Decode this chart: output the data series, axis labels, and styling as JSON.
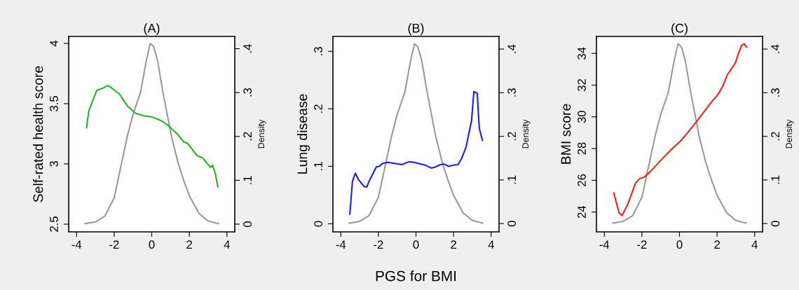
{
  "chart_data": [
    {
      "type": "line",
      "title": "(A)",
      "ylabel": "Self-rated health score",
      "y2label": "Density",
      "xlim": [
        -4.42,
        4.42
      ],
      "xticks": [
        -4,
        -2,
        0,
        2,
        4
      ],
      "ylim": [
        2.436,
        4.058
      ],
      "yticks": [
        2.5,
        3,
        3.5,
        4
      ],
      "y2lim": [
        -0.0176,
        0.428
      ],
      "y2ticks": [
        0,
        {
          "value": 0.1,
          "label": ".1"
        },
        {
          "value": 0.2,
          "label": ".2"
        },
        {
          "value": 0.3,
          "label": ".3"
        },
        {
          "value": 0.4,
          "label": ".4"
        }
      ],
      "series": [
        {
          "color": "#22b422",
          "x": [
            -3.47,
            -3.35,
            -2.93,
            -2.58,
            -2.36,
            -2.22,
            -1.72,
            -1.29,
            -0.86,
            -0.43,
            0,
            0.49,
            0.86,
            1.35,
            1.72,
            1.91,
            2.4,
            2.71,
            3.02,
            3.14,
            3.24,
            3.38,
            3.52
          ],
          "values": [
            3.3,
            3.44,
            3.61,
            3.63,
            3.65,
            3.64,
            3.58,
            3.48,
            3.42,
            3.4,
            3.39,
            3.36,
            3.32,
            3.25,
            3.18,
            3.17,
            3.07,
            3.05,
            2.99,
            2.97,
            2.99,
            2.92,
            2.81
          ]
        },
        {
          "color": "#999999",
          "axis": "y2",
          "x": [
            -3.55,
            -3,
            -2.5,
            -2,
            -1.8,
            -1.3,
            -1,
            -0.6,
            -0.3,
            -0.08,
            0.1,
            0.3,
            0.6,
            1.05,
            1.4,
            1.7,
            2,
            2.5,
            3,
            3.55
          ],
          "values": [
            0.001,
            0.005,
            0.018,
            0.06,
            0.1,
            0.2,
            0.25,
            0.3,
            0.37,
            0.412,
            0.405,
            0.375,
            0.3,
            0.2,
            0.14,
            0.1,
            0.065,
            0.025,
            0.007,
            0.001
          ]
        }
      ]
    },
    {
      "type": "line",
      "title": "(B)",
      "ylabel": "Lung disease",
      "y2label": "Density",
      "xlabel": "PGS for BMI",
      "xlim": [
        -4.42,
        4.42
      ],
      "xticks": [
        -4,
        -2,
        0,
        2,
        4
      ],
      "ylim": [
        -0.014,
        0.326
      ],
      "yticks": [
        0,
        {
          "value": 0.1,
          "label": ".1"
        },
        {
          "value": 0.2,
          "label": ".2"
        },
        {
          "value": 0.3,
          "label": ".3"
        }
      ],
      "y2lim": [
        -0.019,
        0.429
      ],
      "y2ticks": [
        0,
        {
          "value": 0.1,
          "label": ".1"
        },
        {
          "value": 0.2,
          "label": ".2"
        },
        {
          "value": 0.3,
          "label": ".3"
        },
        {
          "value": 0.4,
          "label": ".4"
        }
      ],
      "series": [
        {
          "color": "#1a1aff",
          "x": [
            -3.52,
            -3.38,
            -3.23,
            -3.06,
            -2.77,
            -2.62,
            -2.48,
            -2.11,
            -1.96,
            -1.78,
            -1.49,
            -0.75,
            -0.37,
            -0.12,
            0.5,
            0.81,
            0.97,
            1.3,
            1.49,
            1.74,
            1.99,
            2.24,
            2.42,
            2.67,
            2.96,
            3.08,
            3.26,
            3.37,
            3.54
          ],
          "values": [
            0.017,
            0.074,
            0.088,
            0.077,
            0.065,
            0.064,
            0.075,
            0.099,
            0.1,
            0.105,
            0.107,
            0.103,
            0.108,
            0.107,
            0.102,
            0.097,
            0.098,
            0.103,
            0.104,
            0.1,
            0.102,
            0.103,
            0.113,
            0.134,
            0.18,
            0.23,
            0.227,
            0.166,
            0.145
          ]
        },
        {
          "color": "#999999",
          "axis": "y2",
          "x": [
            -3.55,
            -3,
            -2.5,
            -2,
            -1.8,
            -1.3,
            -1,
            -0.6,
            -0.3,
            -0.08,
            0.1,
            0.3,
            0.6,
            1.05,
            1.4,
            1.7,
            2,
            2.5,
            3,
            3.55
          ],
          "values": [
            0.001,
            0.005,
            0.018,
            0.06,
            0.1,
            0.2,
            0.25,
            0.3,
            0.37,
            0.412,
            0.405,
            0.375,
            0.3,
            0.2,
            0.14,
            0.1,
            0.065,
            0.025,
            0.007,
            0.001
          ]
        }
      ]
    },
    {
      "type": "line",
      "title": "(C)",
      "ylabel": "BMI score",
      "y2label": "Density",
      "xlim": [
        -4.42,
        4.42
      ],
      "xticks": [
        -4,
        -2,
        0,
        2,
        4
      ],
      "ylim": [
        22.75,
        35.07
      ],
      "yticks": [
        24,
        26,
        28,
        30,
        32,
        34
      ],
      "y2lim": [
        -0.019,
        0.429
      ],
      "y2ticks": [
        0,
        {
          "value": 0.1,
          "label": ".1"
        },
        {
          "value": 0.2,
          "label": ".2"
        },
        {
          "value": 0.3,
          "label": ".3"
        },
        {
          "value": 0.4,
          "label": ".4"
        }
      ],
      "series": [
        {
          "color": "#ff1a1a",
          "x": [
            -3.5,
            -3.21,
            -3.06,
            -2.75,
            -2.34,
            -2.13,
            -1.88,
            -1.57,
            -0.82,
            -0.39,
            0.05,
            0.42,
            0.92,
            1.67,
            2.04,
            2.29,
            2.54,
            2.79,
            2.97,
            3.13,
            3.31,
            3.45,
            3.57
          ],
          "values": [
            25.2,
            23.93,
            23.78,
            24.5,
            25.82,
            26.1,
            26.2,
            26.53,
            27.48,
            27.99,
            28.47,
            28.98,
            29.72,
            30.89,
            31.4,
            31.9,
            32.64,
            33.07,
            33.4,
            33.97,
            34.51,
            34.6,
            34.4
          ]
        },
        {
          "color": "#999999",
          "axis": "y2",
          "x": [
            -3.55,
            -3,
            -2.5,
            -2,
            -1.8,
            -1.3,
            -1,
            -0.6,
            -0.3,
            -0.08,
            0.1,
            0.3,
            0.6,
            1.05,
            1.4,
            1.7,
            2,
            2.5,
            3,
            3.55
          ],
          "values": [
            0.001,
            0.005,
            0.018,
            0.06,
            0.1,
            0.2,
            0.25,
            0.3,
            0.37,
            0.412,
            0.405,
            0.375,
            0.3,
            0.2,
            0.14,
            0.1,
            0.065,
            0.025,
            0.007,
            0.001
          ]
        }
      ]
    }
  ]
}
